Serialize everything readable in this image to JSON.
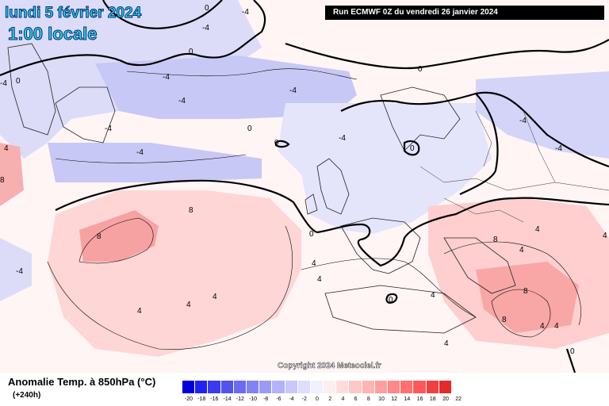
{
  "header": {
    "date_title": "lundi 5 février 2024",
    "time_title": "1:00 locale",
    "run_info": "Run ECMWF 0Z du vendredi 26 janvier 2024"
  },
  "watermark": "Copyright 2024 Meteociel.fr",
  "legend": {
    "title": "Anomalie Temp. à 850hPa (°C)",
    "subtitle": "(+240h)",
    "labels": [
      "-20",
      "-18",
      "-16",
      "-14",
      "-12",
      "-10",
      "-8",
      "-6",
      "-4",
      "-2",
      "0",
      "2",
      "4",
      "6",
      "8",
      "10",
      "12",
      "14",
      "16",
      "18",
      "20",
      "22"
    ],
    "colors": [
      "#0000dd",
      "#2222ee",
      "#3a3aee",
      "#5252f0",
      "#6a6af2",
      "#8282f4",
      "#9a9af6",
      "#b2b2f8",
      "#c8c8fa",
      "#dedefc",
      "#f0f0ff",
      "#ffeeee",
      "#ffdcdc",
      "#ffc8c8",
      "#ffb4b4",
      "#ff9e9e",
      "#ff8888",
      "#ff7070",
      "#ff5858",
      "#f24040",
      "#e62a2a"
    ]
  },
  "map": {
    "contour_labels": [
      "0",
      "0",
      "0",
      "0",
      "0",
      "0",
      "0",
      "0",
      "0",
      "0",
      "-4",
      "-4",
      "-4",
      "-4",
      "-4",
      "-4",
      "-4",
      "-4",
      "-4",
      "-4",
      "-4",
      "-4",
      "4",
      "4",
      "4",
      "4",
      "4",
      "4",
      "4",
      "4",
      "4",
      "4",
      "4",
      "4",
      "4",
      "8",
      "8",
      "8",
      "8",
      "8",
      "8"
    ]
  }
}
